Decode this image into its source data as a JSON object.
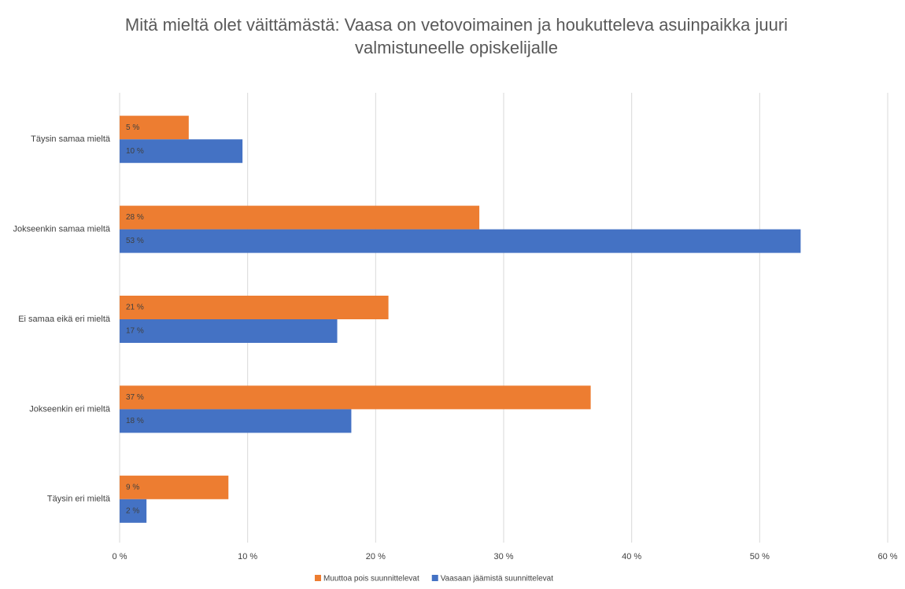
{
  "chart_data": {
    "type": "hbar",
    "title": "Mitä mieltä olet väittämästä: Vaasa on vetovoimainen ja houkutteleva asuinpaikka juuri valmistuneelle opiskelijalle",
    "categories": [
      "Täysin samaa mieltä",
      "Jokseenkin samaa mieltä",
      "Ei samaa eikä eri mieltä",
      "Jokseenkin eri mieltä",
      "Täysin eri mieltä"
    ],
    "series": [
      {
        "name": "Muuttoa pois suunnittelevat",
        "color": "#ed7d31",
        "values": [
          5.4,
          28.1,
          21.0,
          36.8,
          8.5
        ],
        "value_labels": [
          "5 %",
          "28 %",
          "21 %",
          "37 %",
          "9 %"
        ]
      },
      {
        "name": "Vaasaan jäämistä suunnittelevat",
        "color": "#4472c4",
        "values": [
          9.6,
          53.2,
          17.0,
          18.1,
          2.1
        ],
        "value_labels": [
          "10 %",
          "53 %",
          "17 %",
          "18 %",
          "2 %"
        ]
      }
    ],
    "xlim": [
      0,
      60
    ],
    "xticks": [
      {
        "value": 0,
        "label": "0 %"
      },
      {
        "value": 10,
        "label": "10 %"
      },
      {
        "value": 20,
        "label": "20 %"
      },
      {
        "value": 30,
        "label": "30 %"
      },
      {
        "value": 40,
        "label": "40 %"
      },
      {
        "value": 50,
        "label": "50 %"
      },
      {
        "value": 60,
        "label": "60 %"
      }
    ],
    "grid": true,
    "legend": "bottom"
  }
}
